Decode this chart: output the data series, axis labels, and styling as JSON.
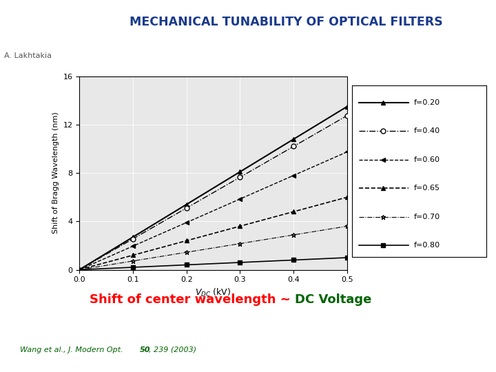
{
  "title": "MECHANICAL TUNABILITY OF OPTICAL FILTERS",
  "author": "A. Lakhtakia",
  "subtitle_red": "Shift of center wavelength ~ ",
  "subtitle_green": "DC Voltage",
  "citation": "Wang et al., J. Modern Opt. ",
  "citation_bold": "50",
  "citation_end": ", 239 (2003)",
  "ylabel": "Shift of Bragg Wavelength (nm)",
  "xlim": [
    0,
    0.5
  ],
  "ylim": [
    0,
    16
  ],
  "xticks": [
    0,
    0.1,
    0.2,
    0.3,
    0.4,
    0.5
  ],
  "yticks": [
    0,
    4,
    8,
    12,
    16
  ],
  "background_color": "#ffffff",
  "title_color": "#1a3a8c",
  "pennstate_blue": "#1e3a7b",
  "series": [
    {
      "label": "f=0.20",
      "slope": 27.0,
      "linestyle": "-",
      "marker": "^",
      "mfc": "black",
      "lw": 1.5
    },
    {
      "label": "f=0.40",
      "slope": 25.5,
      "linestyle": "-.",
      "marker": "o",
      "mfc": "white",
      "lw": 1.0
    },
    {
      "label": "f=0.60",
      "slope": 19.5,
      "linestyle": "--",
      "marker": "<",
      "mfc": "black",
      "lw": 1.0
    },
    {
      "label": "f=0.65",
      "slope": 12.0,
      "linestyle": "--",
      "marker": "^",
      "mfc": "black",
      "lw": 1.2
    },
    {
      "label": "f=0.70",
      "slope": 7.2,
      "linestyle": "-.",
      "marker": "*",
      "mfc": "white",
      "lw": 0.8
    },
    {
      "label": "f=0.80",
      "slope": 2.0,
      "linestyle": "-",
      "marker": "s",
      "mfc": "black",
      "lw": 1.2
    }
  ]
}
